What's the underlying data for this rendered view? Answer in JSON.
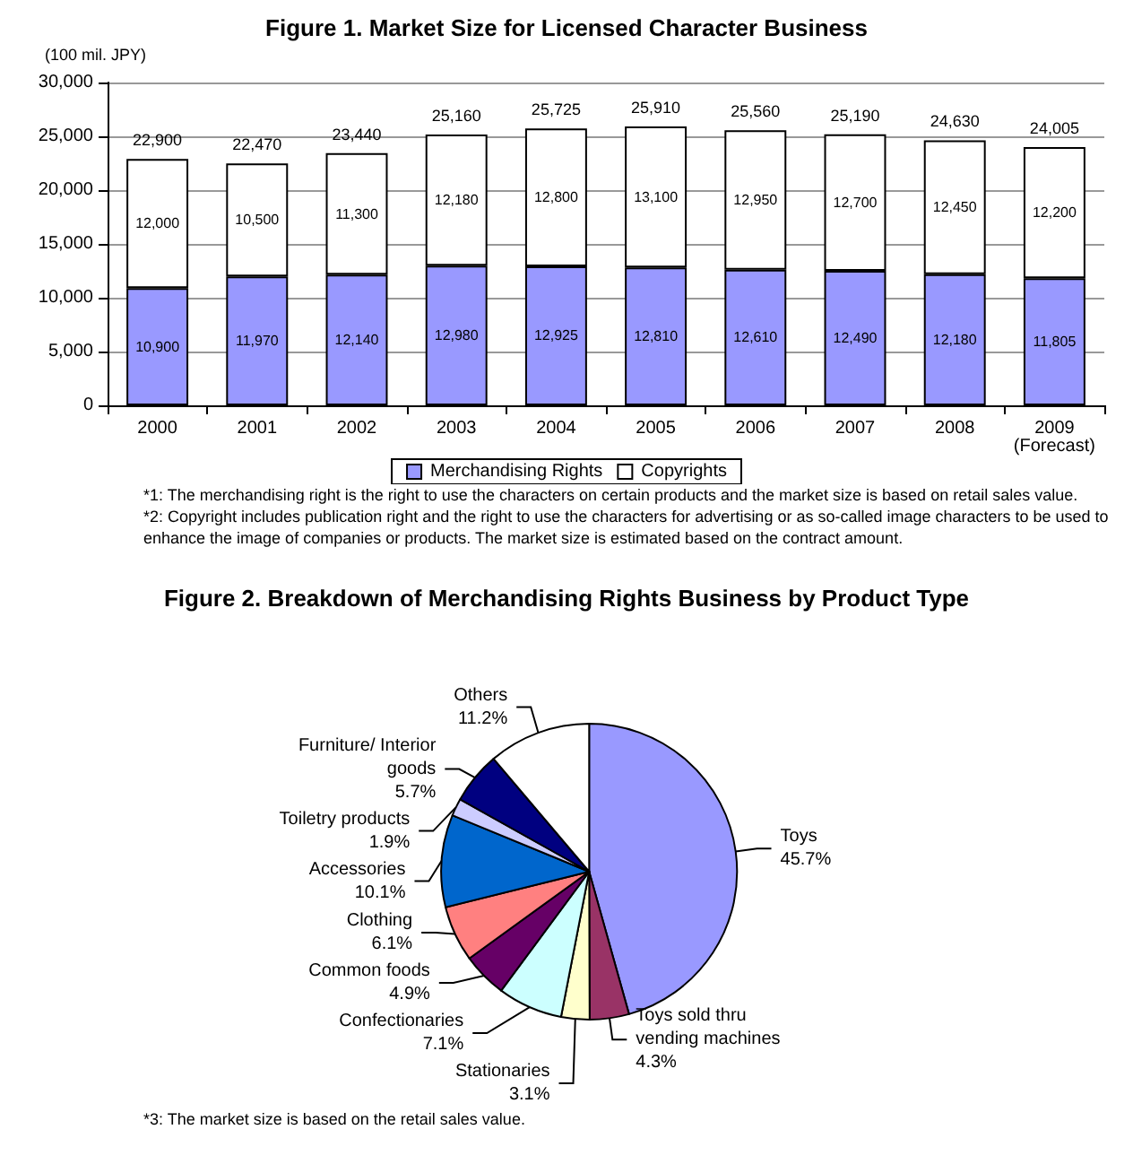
{
  "chart_data": [
    {
      "type": "bar",
      "title": "Figure 1. Market Size for Licensed Character Business",
      "ylabel": "(100 mil. JPY)",
      "categories": [
        "2000",
        "2001",
        "2002",
        "2003",
        "2004",
        "2005",
        "2006",
        "2007",
        "2008",
        "2009\n(Forecast)"
      ],
      "series": [
        {
          "name": "Merchandising Rights",
          "color": "#9999ff",
          "values": [
            10900,
            11970,
            12140,
            12980,
            12925,
            12810,
            12610,
            12490,
            12180,
            11805
          ],
          "value_labels": [
            "10,900",
            "11,970",
            "12,140",
            "12,980",
            "12,925",
            "12,810",
            "12,610",
            "12,490",
            "12,180",
            "11,805"
          ]
        },
        {
          "name": "Copyrights",
          "color": "#ffffff",
          "values": [
            12000,
            10500,
            11300,
            12180,
            12800,
            13100,
            12950,
            12700,
            12450,
            12200
          ],
          "value_labels": [
            "12,000",
            "10,500",
            "11,300",
            "12,180",
            "12,800",
            "13,100",
            "12,950",
            "12,700",
            "12,450",
            "12,200"
          ]
        }
      ],
      "stacked": true,
      "totals": [
        "22,900",
        "22,470",
        "23,440",
        "25,160",
        "25,725",
        "25,910",
        "25,560",
        "25,190",
        "24,630",
        "24,005"
      ],
      "ylim": [
        0,
        30000
      ],
      "yticks": [
        {
          "value": 0,
          "label": "0"
        },
        {
          "value": 5000,
          "label": "5,000"
        },
        {
          "value": 10000,
          "label": "10,000"
        },
        {
          "value": 15000,
          "label": "15,000"
        },
        {
          "value": 20000,
          "label": "20,000"
        },
        {
          "value": 25000,
          "label": "25,000"
        },
        {
          "value": 30000,
          "label": "30,000"
        }
      ],
      "grid": "y",
      "legend": "bottom",
      "annotations": [
        "*1: The merchandising right is the right to use the characters on certain products and the market size is based on retail sales value.",
        "*2: Copyright includes publication right and the right to use the characters for advertising or as so-called image characters to be used to enhance the image of companies or products. The market size is estimated based on the contract amount."
      ]
    },
    {
      "type": "pie",
      "title": "Figure 2. Breakdown of Merchandising Rights Business by Product Type",
      "categories": [
        "Toys",
        "Toys sold thru\nvending machines",
        "Stationaries",
        "Confectionaries",
        "Common foods",
        "Clothing",
        "Accessories",
        "Toiletry products",
        "Furniture/ Interior\ngoods",
        "Others"
      ],
      "values": [
        45.7,
        4.3,
        3.1,
        7.1,
        4.9,
        6.1,
        10.1,
        1.9,
        5.7,
        11.2
      ],
      "value_labels": [
        "45.7%",
        "4.3%",
        "3.1%",
        "7.1%",
        "4.9%",
        "6.1%",
        "10.1%",
        "1.9%",
        "5.7%",
        "11.2%"
      ],
      "colors": [
        "#9999ff",
        "#993366",
        "#ffffcc",
        "#ccffff",
        "#660066",
        "#ff8080",
        "#0066cc",
        "#ccccff",
        "#000080",
        "#ffffff"
      ],
      "legend": false,
      "annotations": [
        "*3: The market size is based on the retail sales value."
      ]
    }
  ]
}
